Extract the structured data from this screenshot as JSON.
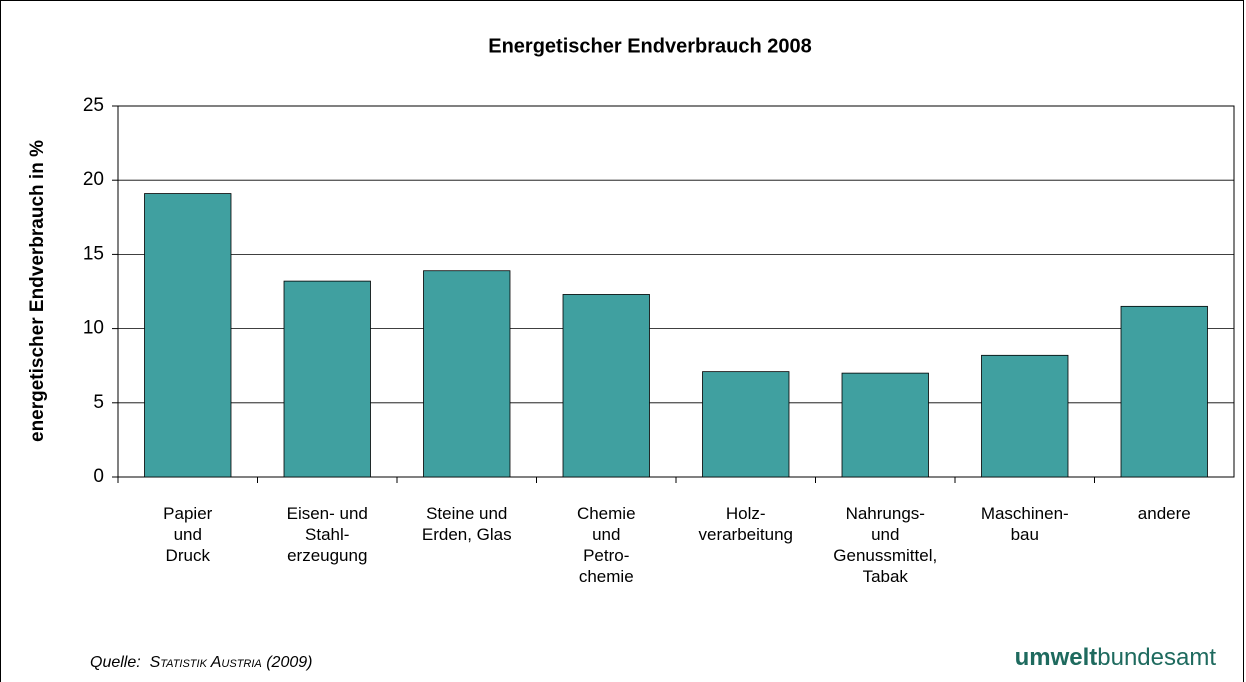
{
  "chart_data": {
    "type": "bar",
    "title": "Energetischer Endverbrauch 2008",
    "y_label": "energetischer Endverbrauch in %",
    "categories": [
      "Papier\nund\nDruck",
      "Eisen- und\nStahl-\nerzeugung",
      "Steine und\nErden, Glas",
      "Chemie\nund\nPetro-\nchemie",
      "Holz-\nverarbeitung",
      "Nahrungs-\nund\nGenussmittel,\nTabak",
      "Maschinen-\nbau",
      "andere"
    ],
    "values": [
      19.1,
      13.2,
      13.9,
      12.3,
      7.1,
      7.0,
      8.2,
      11.5
    ],
    "color": "#40a0a0",
    "ylim": [
      0,
      25
    ],
    "yticks": [
      0,
      5,
      10,
      15,
      20,
      25
    ],
    "grid": true,
    "source_prefix": "Quelle:",
    "source": "Statistik Austria (2009)",
    "logo_bold": "umwelt",
    "logo_rest": "bundesamt"
  }
}
